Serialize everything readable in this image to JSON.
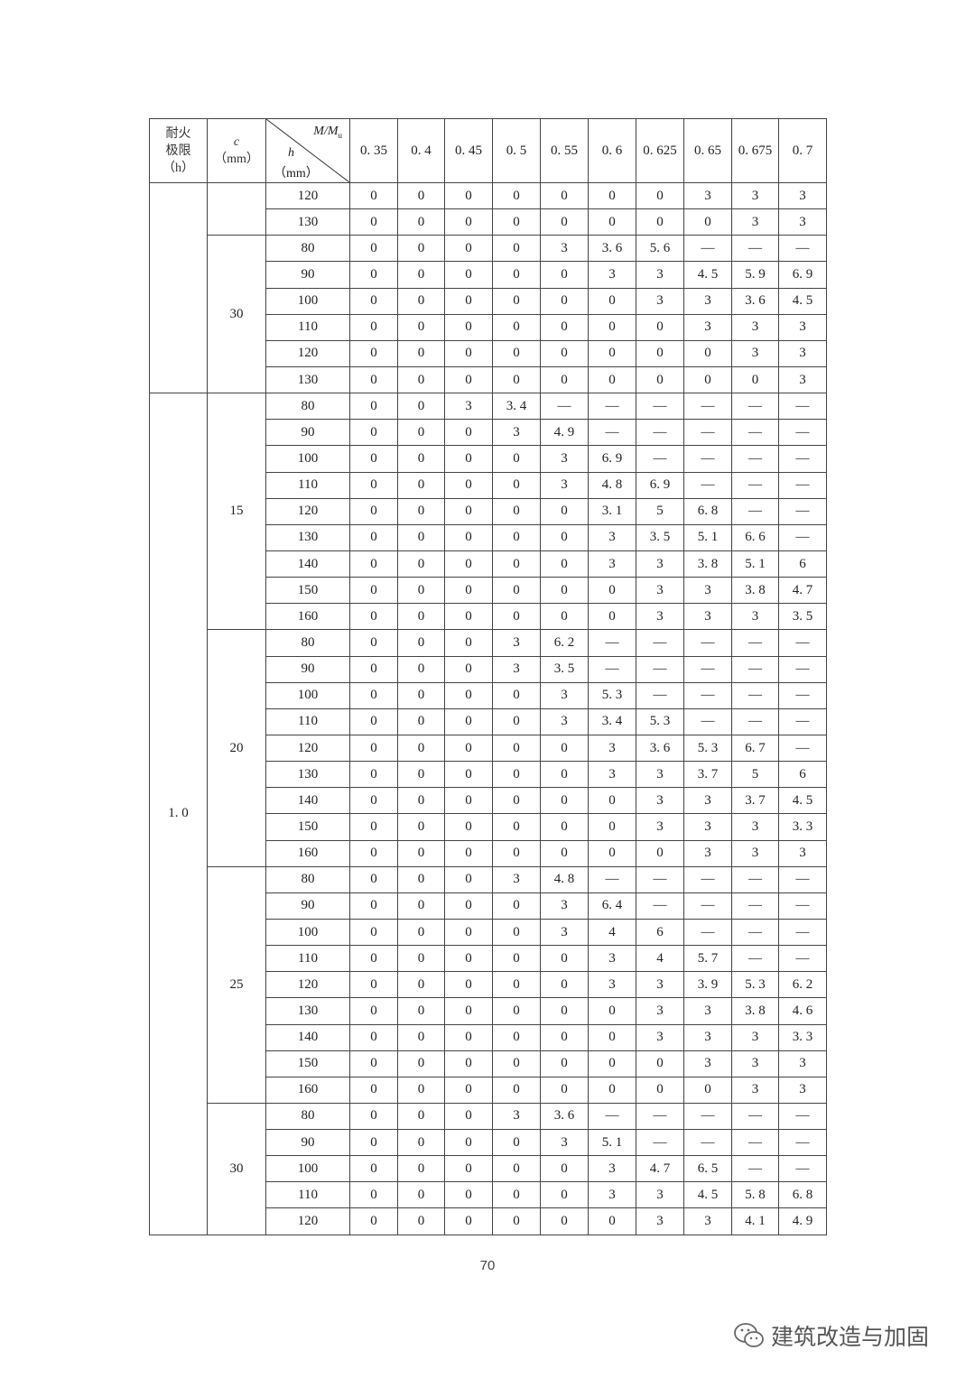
{
  "header": {
    "fire_rating": [
      "耐火",
      "极限",
      "（h）"
    ],
    "c": [
      "c",
      "（mm）"
    ],
    "diag_top": "M/M",
    "diag_top_sub": "u",
    "diag_h": "h",
    "diag_h_unit": "（mm）",
    "ratios": [
      "0. 35",
      "0. 4",
      "0. 45",
      "0. 5",
      "0. 55",
      "0. 6",
      "0. 625",
      "0. 65",
      "0. 675",
      "0. 7"
    ]
  },
  "fire_groups": [
    {
      "label": "",
      "c_groups": [
        {
          "c": "",
          "rows": [
            {
              "h": "120",
              "v": [
                "0",
                "0",
                "0",
                "0",
                "0",
                "0",
                "0",
                "3",
                "3",
                "3"
              ]
            },
            {
              "h": "130",
              "v": [
                "0",
                "0",
                "0",
                "0",
                "0",
                "0",
                "0",
                "0",
                "3",
                "3"
              ]
            }
          ]
        },
        {
          "c": "30",
          "rows": [
            {
              "h": "80",
              "v": [
                "0",
                "0",
                "0",
                "0",
                "3",
                "3. 6",
                "5. 6",
                "—",
                "—",
                "—"
              ]
            },
            {
              "h": "90",
              "v": [
                "0",
                "0",
                "0",
                "0",
                "0",
                "3",
                "3",
                "4. 5",
                "5. 9",
                "6. 9"
              ]
            },
            {
              "h": "100",
              "v": [
                "0",
                "0",
                "0",
                "0",
                "0",
                "0",
                "3",
                "3",
                "3. 6",
                "4. 5"
              ]
            },
            {
              "h": "110",
              "v": [
                "0",
                "0",
                "0",
                "0",
                "0",
                "0",
                "0",
                "3",
                "3",
                "3"
              ]
            },
            {
              "h": "120",
              "v": [
                "0",
                "0",
                "0",
                "0",
                "0",
                "0",
                "0",
                "0",
                "3",
                "3"
              ]
            },
            {
              "h": "130",
              "v": [
                "0",
                "0",
                "0",
                "0",
                "0",
                "0",
                "0",
                "0",
                "0",
                "3"
              ]
            }
          ]
        }
      ]
    },
    {
      "label": "1. 0",
      "c_groups": [
        {
          "c": "15",
          "rows": [
            {
              "h": "80",
              "v": [
                "0",
                "0",
                "3",
                "3. 4",
                "—",
                "—",
                "—",
                "—",
                "—",
                "—"
              ]
            },
            {
              "h": "90",
              "v": [
                "0",
                "0",
                "0",
                "3",
                "4. 9",
                "—",
                "—",
                "—",
                "—",
                "—"
              ]
            },
            {
              "h": "100",
              "v": [
                "0",
                "0",
                "0",
                "0",
                "3",
                "6. 9",
                "—",
                "—",
                "—",
                "—"
              ]
            },
            {
              "h": "110",
              "v": [
                "0",
                "0",
                "0",
                "0",
                "3",
                "4. 8",
                "6. 9",
                "—",
                "—",
                "—"
              ]
            },
            {
              "h": "120",
              "v": [
                "0",
                "0",
                "0",
                "0",
                "0",
                "3. 1",
                "5",
                "6. 8",
                "—",
                "—"
              ]
            },
            {
              "h": "130",
              "v": [
                "0",
                "0",
                "0",
                "0",
                "0",
                "3",
                "3. 5",
                "5. 1",
                "6. 6",
                "—"
              ]
            },
            {
              "h": "140",
              "v": [
                "0",
                "0",
                "0",
                "0",
                "0",
                "3",
                "3",
                "3. 8",
                "5. 1",
                "6"
              ]
            },
            {
              "h": "150",
              "v": [
                "0",
                "0",
                "0",
                "0",
                "0",
                "0",
                "3",
                "3",
                "3. 8",
                "4. 7"
              ]
            },
            {
              "h": "160",
              "v": [
                "0",
                "0",
                "0",
                "0",
                "0",
                "0",
                "3",
                "3",
                "3",
                "3. 5"
              ]
            }
          ]
        },
        {
          "c": "20",
          "rows": [
            {
              "h": "80",
              "v": [
                "0",
                "0",
                "0",
                "3",
                "6. 2",
                "—",
                "—",
                "—",
                "—",
                "—"
              ]
            },
            {
              "h": "90",
              "v": [
                "0",
                "0",
                "0",
                "3",
                "3. 5",
                "—",
                "—",
                "—",
                "—",
                "—"
              ]
            },
            {
              "h": "100",
              "v": [
                "0",
                "0",
                "0",
                "0",
                "3",
                "5. 3",
                "—",
                "—",
                "—",
                "—"
              ]
            },
            {
              "h": "110",
              "v": [
                "0",
                "0",
                "0",
                "0",
                "3",
                "3. 4",
                "5. 3",
                "—",
                "—",
                "—"
              ]
            },
            {
              "h": "120",
              "v": [
                "0",
                "0",
                "0",
                "0",
                "0",
                "3",
                "3. 6",
                "5. 3",
                "6. 7",
                "—"
              ]
            },
            {
              "h": "130",
              "v": [
                "0",
                "0",
                "0",
                "0",
                "0",
                "3",
                "3",
                "3. 7",
                "5",
                "6"
              ]
            },
            {
              "h": "140",
              "v": [
                "0",
                "0",
                "0",
                "0",
                "0",
                "0",
                "3",
                "3",
                "3. 7",
                "4. 5"
              ]
            },
            {
              "h": "150",
              "v": [
                "0",
                "0",
                "0",
                "0",
                "0",
                "0",
                "3",
                "3",
                "3",
                "3. 3"
              ]
            },
            {
              "h": "160",
              "v": [
                "0",
                "0",
                "0",
                "0",
                "0",
                "0",
                "0",
                "3",
                "3",
                "3"
              ]
            }
          ]
        },
        {
          "c": "25",
          "rows": [
            {
              "h": "80",
              "v": [
                "0",
                "0",
                "0",
                "3",
                "4. 8",
                "—",
                "—",
                "—",
                "—",
                "—"
              ]
            },
            {
              "h": "90",
              "v": [
                "0",
                "0",
                "0",
                "0",
                "3",
                "6. 4",
                "—",
                "—",
                "—",
                "—"
              ]
            },
            {
              "h": "100",
              "v": [
                "0",
                "0",
                "0",
                "0",
                "3",
                "4",
                "6",
                "—",
                "—",
                "—"
              ]
            },
            {
              "h": "110",
              "v": [
                "0",
                "0",
                "0",
                "0",
                "0",
                "3",
                "4",
                "5. 7",
                "—",
                "—"
              ]
            },
            {
              "h": "120",
              "v": [
                "0",
                "0",
                "0",
                "0",
                "0",
                "3",
                "3",
                "3. 9",
                "5. 3",
                "6. 2"
              ]
            },
            {
              "h": "130",
              "v": [
                "0",
                "0",
                "0",
                "0",
                "0",
                "0",
                "3",
                "3",
                "3. 8",
                "4. 6"
              ]
            },
            {
              "h": "140",
              "v": [
                "0",
                "0",
                "0",
                "0",
                "0",
                "0",
                "3",
                "3",
                "3",
                "3. 3"
              ]
            },
            {
              "h": "150",
              "v": [
                "0",
                "0",
                "0",
                "0",
                "0",
                "0",
                "0",
                "3",
                "3",
                "3"
              ]
            },
            {
              "h": "160",
              "v": [
                "0",
                "0",
                "0",
                "0",
                "0",
                "0",
                "0",
                "0",
                "3",
                "3"
              ]
            }
          ]
        },
        {
          "c": "30",
          "rows": [
            {
              "h": "80",
              "v": [
                "0",
                "0",
                "0",
                "3",
                "3. 6",
                "—",
                "—",
                "—",
                "—",
                "—"
              ]
            },
            {
              "h": "90",
              "v": [
                "0",
                "0",
                "0",
                "0",
                "3",
                "5. 1",
                "—",
                "—",
                "—",
                "—"
              ]
            },
            {
              "h": "100",
              "v": [
                "0",
                "0",
                "0",
                "0",
                "0",
                "3",
                "4. 7",
                "6. 5",
                "—",
                "—"
              ]
            },
            {
              "h": "110",
              "v": [
                "0",
                "0",
                "0",
                "0",
                "0",
                "3",
                "3",
                "4. 5",
                "5. 8",
                "6. 8"
              ]
            },
            {
              "h": "120",
              "v": [
                "0",
                "0",
                "0",
                "0",
                "0",
                "0",
                "3",
                "3",
                "4. 1",
                "4. 9"
              ]
            }
          ]
        }
      ]
    }
  ],
  "page_number": "70",
  "watermark": {
    "text": "建筑改造与加固",
    "icon": "wechat-icon"
  }
}
